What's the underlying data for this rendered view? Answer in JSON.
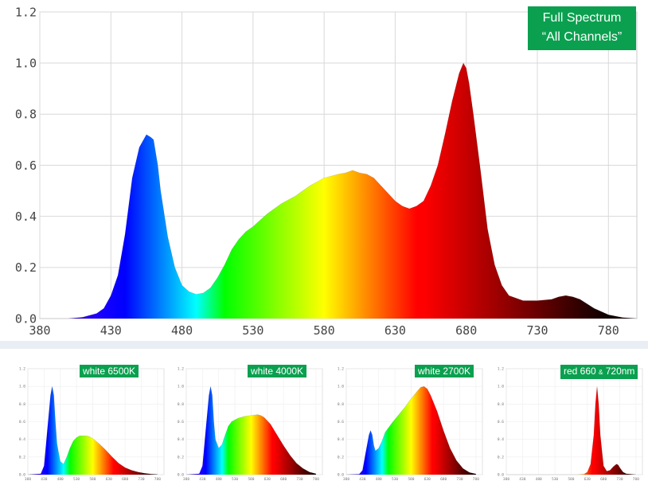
{
  "chart_data": [
    {
      "type": "area",
      "badge": [
        "Full Spectrum",
        "“All Channels”"
      ],
      "xlim": [
        380,
        800
      ],
      "ylim": [
        0,
        1.2
      ],
      "xticks": [
        380,
        430,
        480,
        530,
        580,
        630,
        680,
        730,
        780
      ],
      "yticks": [
        "0.0",
        "0.2",
        "0.4",
        "0.6",
        "0.8",
        "1.0",
        "1.2"
      ],
      "grid": true,
      "x": [
        380,
        400,
        410,
        420,
        425,
        430,
        435,
        440,
        445,
        450,
        455,
        458,
        460,
        463,
        465,
        470,
        475,
        480,
        485,
        490,
        495,
        500,
        505,
        510,
        515,
        520,
        525,
        530,
        540,
        550,
        560,
        570,
        580,
        590,
        595,
        600,
        605,
        610,
        615,
        620,
        625,
        630,
        635,
        640,
        645,
        650,
        655,
        660,
        665,
        670,
        675,
        678,
        680,
        682,
        685,
        690,
        695,
        700,
        705,
        710,
        720,
        730,
        740,
        745,
        750,
        755,
        760,
        770,
        780,
        790,
        800
      ],
      "y": [
        0,
        0,
        0.005,
        0.02,
        0.04,
        0.09,
        0.17,
        0.33,
        0.55,
        0.67,
        0.72,
        0.71,
        0.7,
        0.6,
        0.5,
        0.32,
        0.2,
        0.13,
        0.105,
        0.095,
        0.1,
        0.12,
        0.16,
        0.21,
        0.27,
        0.31,
        0.34,
        0.36,
        0.41,
        0.45,
        0.48,
        0.52,
        0.55,
        0.565,
        0.57,
        0.58,
        0.57,
        0.565,
        0.55,
        0.52,
        0.49,
        0.46,
        0.44,
        0.43,
        0.44,
        0.46,
        0.52,
        0.6,
        0.72,
        0.85,
        0.96,
        1.0,
        0.98,
        0.92,
        0.8,
        0.58,
        0.35,
        0.21,
        0.13,
        0.09,
        0.07,
        0.07,
        0.075,
        0.085,
        0.09,
        0.085,
        0.075,
        0.04,
        0.015,
        0.004,
        0
      ]
    },
    {
      "type": "area",
      "badge": "white 6500K",
      "xlim": [
        380,
        800
      ],
      "ylim": [
        0,
        1.2
      ],
      "xticks": [
        380,
        430,
        480,
        530,
        580,
        630,
        680,
        730,
        780
      ],
      "yticks": [
        "0.0",
        "0.2",
        "0.4",
        "0.6",
        "0.8",
        "1.0",
        "1.2"
      ],
      "x": [
        380,
        420,
        430,
        440,
        450,
        455,
        460,
        465,
        470,
        480,
        490,
        500,
        510,
        520,
        530,
        540,
        550,
        560,
        570,
        580,
        590,
        600,
        620,
        640,
        660,
        680,
        700,
        720,
        740,
        760,
        780
      ],
      "y": [
        0,
        0.01,
        0.1,
        0.5,
        0.9,
        1.0,
        0.9,
        0.6,
        0.35,
        0.15,
        0.12,
        0.2,
        0.3,
        0.38,
        0.42,
        0.44,
        0.44,
        0.44,
        0.43,
        0.41,
        0.38,
        0.35,
        0.28,
        0.2,
        0.13,
        0.08,
        0.05,
        0.03,
        0.015,
        0.006,
        0.002
      ]
    },
    {
      "type": "area",
      "badge": "white 4000K",
      "xlim": [
        380,
        800
      ],
      "ylim": [
        0,
        1.2
      ],
      "xticks": [
        380,
        430,
        480,
        530,
        580,
        630,
        680,
        730,
        780
      ],
      "yticks": [
        "0.0",
        "0.2",
        "0.4",
        "0.6",
        "0.8",
        "1.0",
        "1.2"
      ],
      "x": [
        380,
        420,
        430,
        440,
        450,
        455,
        460,
        465,
        470,
        480,
        490,
        500,
        510,
        520,
        530,
        540,
        560,
        580,
        600,
        610,
        620,
        640,
        660,
        680,
        700,
        720,
        740,
        760,
        780
      ],
      "y": [
        0,
        0.01,
        0.1,
        0.5,
        0.9,
        1.0,
        0.9,
        0.6,
        0.4,
        0.3,
        0.34,
        0.45,
        0.55,
        0.6,
        0.62,
        0.64,
        0.66,
        0.67,
        0.68,
        0.67,
        0.65,
        0.57,
        0.45,
        0.33,
        0.22,
        0.13,
        0.07,
        0.03,
        0.01
      ]
    },
    {
      "type": "area",
      "badge": "white 2700K",
      "xlim": [
        380,
        800
      ],
      "ylim": [
        0,
        1.2
      ],
      "xticks": [
        380,
        430,
        480,
        530,
        580,
        630,
        680,
        730,
        780
      ],
      "yticks": [
        "0.0",
        "0.2",
        "0.4",
        "0.6",
        "0.8",
        "1.0",
        "1.2"
      ],
      "x": [
        380,
        420,
        430,
        440,
        450,
        455,
        460,
        465,
        470,
        480,
        490,
        500,
        520,
        540,
        560,
        580,
        600,
        610,
        620,
        630,
        640,
        660,
        680,
        700,
        720,
        740,
        760,
        780
      ],
      "y": [
        0,
        0.005,
        0.05,
        0.25,
        0.45,
        0.5,
        0.45,
        0.33,
        0.27,
        0.3,
        0.38,
        0.48,
        0.58,
        0.67,
        0.76,
        0.86,
        0.95,
        0.99,
        1.0,
        0.97,
        0.9,
        0.72,
        0.5,
        0.3,
        0.16,
        0.07,
        0.025,
        0.008
      ]
    },
    {
      "type": "area",
      "badge": "red 660 & 720nm",
      "xlim": [
        380,
        800
      ],
      "ylim": [
        0,
        1.2
      ],
      "xticks": [
        380,
        430,
        480,
        530,
        580,
        630,
        680,
        730,
        780
      ],
      "yticks": [
        "0.0",
        "0.2",
        "0.4",
        "0.6",
        "0.8",
        "1.0",
        "1.2"
      ],
      "x": [
        380,
        600,
        620,
        630,
        640,
        650,
        655,
        660,
        665,
        670,
        680,
        690,
        700,
        710,
        720,
        725,
        730,
        740,
        750,
        780
      ],
      "y": [
        0,
        0,
        0.005,
        0.03,
        0.12,
        0.45,
        0.8,
        1.0,
        0.8,
        0.45,
        0.1,
        0.04,
        0.05,
        0.09,
        0.12,
        0.11,
        0.08,
        0.03,
        0.01,
        0
      ]
    }
  ]
}
